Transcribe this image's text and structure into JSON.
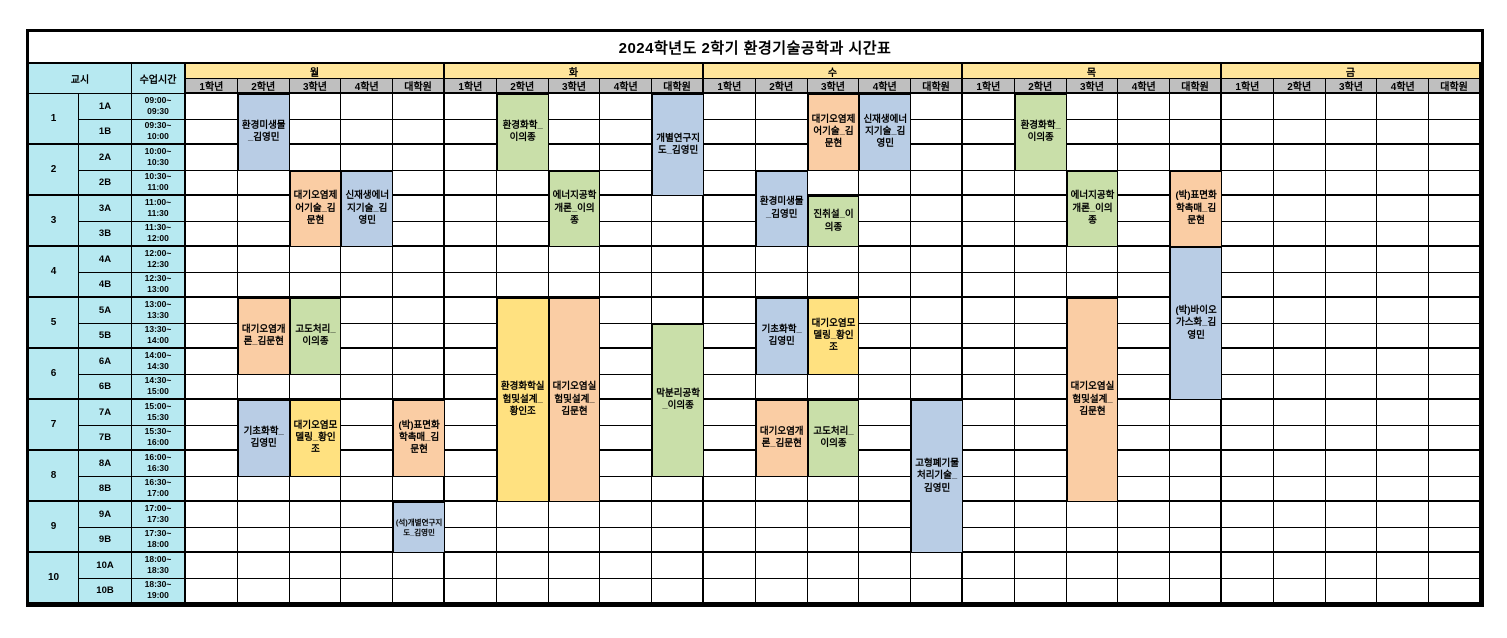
{
  "title": "2024학년도 2학기 환경기술공학과 시간표",
  "headers": {
    "period": "교시",
    "time": "수업시간",
    "days": [
      "월",
      "화",
      "수",
      "목",
      "금"
    ],
    "grades": [
      "1학년",
      "2학년",
      "3학년",
      "4학년",
      "대학원"
    ]
  },
  "colors": {
    "header_cyan": "#B7E9F1",
    "day_header_yellow": "#FFE59B",
    "grade_header_gray": "#BFBFBF",
    "grid_border": "#000000",
    "blocks": {
      "blue": "#B9CDE5",
      "orange": "#FACDA4",
      "green": "#C9DFA9",
      "yellow": "#FFE180"
    }
  },
  "periods": [
    {
      "no": "1",
      "rows": [
        {
          "label": "1A",
          "start": "09:00~",
          "end": "09:30"
        },
        {
          "label": "1B",
          "start": "09:30~",
          "end": "10:00"
        }
      ]
    },
    {
      "no": "2",
      "rows": [
        {
          "label": "2A",
          "start": "10:00~",
          "end": "10:30"
        },
        {
          "label": "2B",
          "start": "10:30~",
          "end": "11:00"
        }
      ]
    },
    {
      "no": "3",
      "rows": [
        {
          "label": "3A",
          "start": "11:00~",
          "end": "11:30"
        },
        {
          "label": "3B",
          "start": "11:30~",
          "end": "12:00"
        }
      ]
    },
    {
      "no": "4",
      "rows": [
        {
          "label": "4A",
          "start": "12:00~",
          "end": "12:30"
        },
        {
          "label": "4B",
          "start": "12:30~",
          "end": "13:00"
        }
      ]
    },
    {
      "no": "5",
      "rows": [
        {
          "label": "5A",
          "start": "13:00~",
          "end": "13:30"
        },
        {
          "label": "5B",
          "start": "13:30~",
          "end": "14:00"
        }
      ]
    },
    {
      "no": "6",
      "rows": [
        {
          "label": "6A",
          "start": "14:00~",
          "end": "14:30"
        },
        {
          "label": "6B",
          "start": "14:30~",
          "end": "15:00"
        }
      ]
    },
    {
      "no": "7",
      "rows": [
        {
          "label": "7A",
          "start": "15:00~",
          "end": "15:30"
        },
        {
          "label": "7B",
          "start": "15:30~",
          "end": "16:00"
        }
      ]
    },
    {
      "no": "8",
      "rows": [
        {
          "label": "8A",
          "start": "16:00~",
          "end": "16:30"
        },
        {
          "label": "8B",
          "start": "16:30~",
          "end": "17:00"
        }
      ]
    },
    {
      "no": "9",
      "rows": [
        {
          "label": "9A",
          "start": "17:00~",
          "end": "17:30"
        },
        {
          "label": "9B",
          "start": "17:30~",
          "end": "18:00"
        }
      ]
    },
    {
      "no": "10",
      "rows": [
        {
          "label": "10A",
          "start": "18:00~",
          "end": "18:30"
        },
        {
          "label": "10B",
          "start": "18:30~",
          "end": "19:00"
        }
      ]
    }
  ],
  "courses": [
    {
      "day": 0,
      "grade": 1,
      "row": 0,
      "span": 3,
      "label": "환경미생물_김영민",
      "color": "blue"
    },
    {
      "day": 0,
      "grade": 2,
      "row": 3,
      "span": 3,
      "label": "대기오염제어기술_김문현",
      "color": "orange"
    },
    {
      "day": 0,
      "grade": 3,
      "row": 3,
      "span": 3,
      "label": "신재생에너지기술_김영민",
      "color": "blue"
    },
    {
      "day": 0,
      "grade": 1,
      "row": 8,
      "span": 3,
      "label": "대기오염개론_김문현",
      "color": "orange"
    },
    {
      "day": 0,
      "grade": 2,
      "row": 8,
      "span": 3,
      "label": "고도처리_이의종",
      "color": "green"
    },
    {
      "day": 0,
      "grade": 1,
      "row": 12,
      "span": 3,
      "label": "기초화학_김영민",
      "color": "blue"
    },
    {
      "day": 0,
      "grade": 2,
      "row": 12,
      "span": 3,
      "label": "대기오염모델링_황인조",
      "color": "yellow"
    },
    {
      "day": 0,
      "grade": 4,
      "row": 12,
      "span": 3,
      "label": "(박)표면화학촉매_김문현",
      "color": "orange"
    },
    {
      "day": 0,
      "grade": 4,
      "row": 16,
      "span": 2,
      "label": "(석)개별연구지도_김영민",
      "color": "blue",
      "small": true
    },
    {
      "day": 1,
      "grade": 1,
      "row": 0,
      "span": 3,
      "label": "환경화학_이의종",
      "color": "green"
    },
    {
      "day": 1,
      "grade": 2,
      "row": 3,
      "span": 3,
      "label": "에너지공학개론_이의종",
      "color": "green"
    },
    {
      "day": 1,
      "grade": 4,
      "row": 0,
      "span": 4,
      "label": "개별연구지도_김영민",
      "color": "blue"
    },
    {
      "day": 1,
      "grade": 1,
      "row": 8,
      "span": 8,
      "label": "환경화학실험및설계_황인조",
      "color": "yellow"
    },
    {
      "day": 1,
      "grade": 2,
      "row": 8,
      "span": 8,
      "label": "대기오염실험및설계_김문현",
      "color": "orange"
    },
    {
      "day": 1,
      "grade": 4,
      "row": 9,
      "span": 6,
      "label": "막분리공학_이의종",
      "color": "green"
    },
    {
      "day": 2,
      "grade": 2,
      "row": 0,
      "span": 3,
      "label": "대기오염제어기술_김문현",
      "color": "orange"
    },
    {
      "day": 2,
      "grade": 3,
      "row": 0,
      "span": 3,
      "label": "신재생에너지기술_김영민",
      "color": "blue"
    },
    {
      "day": 2,
      "grade": 1,
      "row": 3,
      "span": 3,
      "label": "환경미생물_김영민",
      "color": "blue"
    },
    {
      "day": 2,
      "grade": 2,
      "row": 4,
      "span": 2,
      "label": "진취설_이의종",
      "color": "green"
    },
    {
      "day": 2,
      "grade": 1,
      "row": 8,
      "span": 3,
      "label": "기초화학_김영민",
      "color": "blue"
    },
    {
      "day": 2,
      "grade": 2,
      "row": 8,
      "span": 3,
      "label": "대기오염모델링_황인조",
      "color": "yellow"
    },
    {
      "day": 2,
      "grade": 1,
      "row": 12,
      "span": 3,
      "label": "대기오염개론_김문현",
      "color": "orange"
    },
    {
      "day": 2,
      "grade": 2,
      "row": 12,
      "span": 3,
      "label": "고도처리_이의종",
      "color": "green"
    },
    {
      "day": 2,
      "grade": 4,
      "row": 12,
      "span": 6,
      "label": "고형폐기물처리기술_김영민",
      "color": "blue"
    },
    {
      "day": 3,
      "grade": 1,
      "row": 0,
      "span": 3,
      "label": "환경화학_이의종",
      "color": "green"
    },
    {
      "day": 3,
      "grade": 2,
      "row": 3,
      "span": 3,
      "label": "에너지공학개론_이의종",
      "color": "green"
    },
    {
      "day": 3,
      "grade": 4,
      "row": 3,
      "span": 3,
      "label": "(박)표면화학촉매_김문현",
      "color": "orange"
    },
    {
      "day": 3,
      "grade": 4,
      "row": 6,
      "span": 6,
      "label": "(박)바이오가스화_김영민",
      "color": "blue"
    },
    {
      "day": 3,
      "grade": 2,
      "row": 8,
      "span": 8,
      "label": "대기오염실험및설계_김문현",
      "color": "orange"
    }
  ]
}
